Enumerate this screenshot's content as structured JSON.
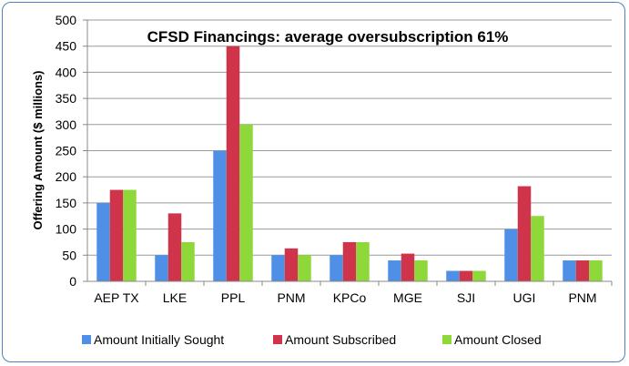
{
  "chart_data": {
    "type": "bar",
    "title": "CFSD Financings: average oversubscription 61%",
    "xlabel": "",
    "ylabel": "Offering Amount ($ millions)",
    "ylim": [
      0,
      500
    ],
    "yticks": [
      0,
      50,
      100,
      150,
      200,
      250,
      300,
      350,
      400,
      450,
      500
    ],
    "grid": true,
    "legend_position": "bottom",
    "categories": [
      "AEP TX",
      "LKE",
      "PPL",
      "PNM",
      "KPCo",
      "MGE",
      "SJI",
      "UGI",
      "PNM"
    ],
    "series": [
      {
        "name": "Amount Initially Sought",
        "color": "#4f8fe6",
        "values": [
          150,
          50,
          250,
          50,
          50,
          40,
          20,
          100,
          40
        ]
      },
      {
        "name": "Amount Subscribed",
        "color": "#d0344a",
        "values": [
          175,
          130,
          450,
          63,
          75,
          53,
          20,
          182,
          40
        ]
      },
      {
        "name": "Amount Closed",
        "color": "#8ed83a",
        "values": [
          175,
          75,
          300,
          50,
          75,
          40,
          20,
          125,
          40
        ]
      }
    ]
  }
}
